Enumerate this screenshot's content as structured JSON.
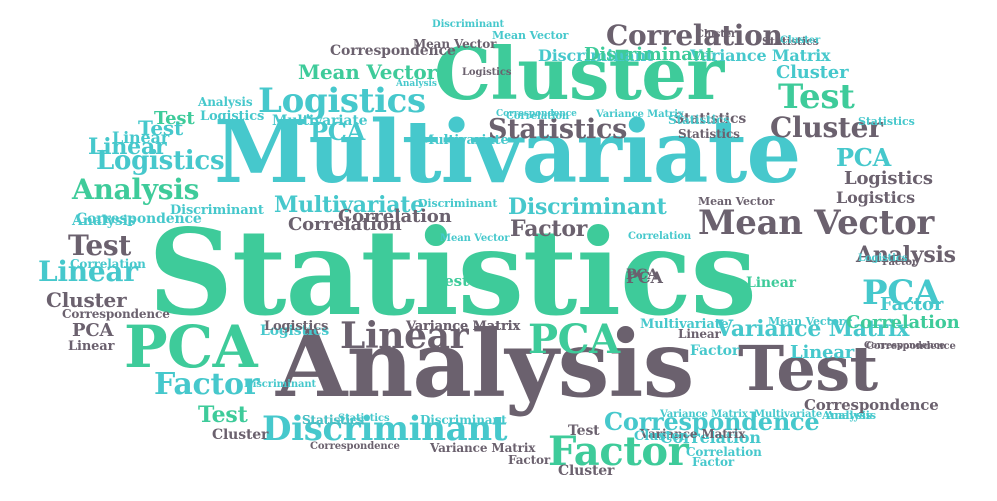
{
  "colors": {
    "teal": "#46c8cc",
    "green": "#3ecb9a",
    "gray": "#6b616e"
  },
  "words": [
    {
      "text": "Statistics",
      "color": "green"
    },
    {
      "text": "Multivariate",
      "color": "teal"
    },
    {
      "text": "Analysis",
      "color": "gray"
    },
    {
      "text": "Cluster",
      "color": "green"
    },
    {
      "text": "Test",
      "color": "gray"
    },
    {
      "text": "PCA",
      "color": "green"
    },
    {
      "text": "Mean Vector",
      "color": "gray"
    },
    {
      "text": "Discriminant",
      "color": "teal"
    },
    {
      "text": "Factor",
      "color": "green"
    },
    {
      "text": "Linear",
      "color": "gray"
    },
    {
      "text": "Logistics",
      "color": "teal"
    },
    {
      "text": "Correlation",
      "color": "gray"
    },
    {
      "text": "Statistics",
      "color": "gray"
    },
    {
      "text": "Cluster",
      "color": "gray"
    },
    {
      "text": "Test",
      "color": "green"
    },
    {
      "text": "PCA",
      "color": "green"
    },
    {
      "text": "PCA",
      "color": "teal"
    },
    {
      "text": "Correspondence",
      "color": "teal"
    },
    {
      "text": "Variance Matrix",
      "color": "teal"
    },
    {
      "text": "Factor",
      "color": "teal"
    },
    {
      "text": "Test",
      "color": "gray"
    },
    {
      "text": "Linear",
      "color": "teal"
    },
    {
      "text": "Analysis",
      "color": "green"
    },
    {
      "text": "Logistics",
      "color": "teal"
    },
    {
      "text": "Mean Vector",
      "color": "green"
    },
    {
      "text": "Analysis",
      "color": "gray"
    },
    {
      "text": "Linear",
      "color": "teal"
    },
    {
      "text": "Test",
      "color": "teal"
    },
    {
      "text": "Multivariate",
      "color": "teal"
    },
    {
      "text": "Discriminant",
      "color": "teal"
    },
    {
      "text": "Correlation",
      "color": "gray"
    },
    {
      "text": "Factor",
      "color": "gray"
    },
    {
      "text": "Linear",
      "color": "teal"
    },
    {
      "text": "PCA",
      "color": "teal"
    },
    {
      "text": "Logistics",
      "color": "gray"
    },
    {
      "text": "Cluster",
      "color": "gray"
    },
    {
      "text": "Test",
      "color": "green"
    },
    {
      "text": "Cluster",
      "color": "teal"
    },
    {
      "text": "Correspondence",
      "color": "gray"
    },
    {
      "text": "Discriminant",
      "color": "teal"
    },
    {
      "text": "Variance Matrix",
      "color": "teal"
    },
    {
      "text": "Correlation",
      "color": "teal"
    },
    {
      "text": "Statistics",
      "color": "gray"
    },
    {
      "text": "Statistics",
      "color": "gray"
    },
    {
      "text": "Statistics",
      "color": "gray"
    },
    {
      "text": "Logistics",
      "color": "gray"
    },
    {
      "text": "Multivariate",
      "color": "teal"
    },
    {
      "text": "PCA",
      "color": "teal"
    },
    {
      "text": "Variance Matrix",
      "color": "gray"
    },
    {
      "text": "Correlation",
      "color": "green"
    },
    {
      "text": "Correspondence",
      "color": "gray"
    },
    {
      "text": "Mean Vector",
      "color": "gray"
    },
    {
      "text": "Mean Vector",
      "color": "teal"
    },
    {
      "text": "Discriminant",
      "color": "teal"
    },
    {
      "text": "Statistics",
      "color": "teal"
    },
    {
      "text": "Logistics",
      "color": "gray"
    },
    {
      "text": "Analysis",
      "color": "teal"
    },
    {
      "text": "Analysis",
      "color": "teal"
    },
    {
      "text": "Logistics",
      "color": "teal"
    },
    {
      "text": "Correspondence",
      "color": "teal"
    },
    {
      "text": "Variance Matrix",
      "color": "gray"
    },
    {
      "text": "Statistics",
      "color": "gray"
    },
    {
      "text": "Cluster",
      "color": "gray"
    },
    {
      "text": "Statistics",
      "color": "teal"
    },
    {
      "text": "Multivariate",
      "color": "teal"
    },
    {
      "text": "Correlation",
      "color": "gray"
    },
    {
      "text": "Analysis",
      "color": "teal"
    },
    {
      "text": "Discriminant",
      "color": "teal"
    },
    {
      "text": "Logistics",
      "color": "teal"
    },
    {
      "text": "Correlation",
      "color": "teal"
    },
    {
      "text": "Mean Vector",
      "color": "teal"
    },
    {
      "text": "Variance Matrix",
      "color": "teal"
    },
    {
      "text": "Test",
      "color": "green"
    },
    {
      "text": "PCA",
      "color": "gray"
    },
    {
      "text": "Linear",
      "color": "green"
    },
    {
      "text": "Correlation",
      "color": "teal"
    },
    {
      "text": "Correspondence",
      "color": "gray"
    },
    {
      "text": "PCA",
      "color": "gray"
    },
    {
      "text": "Linear",
      "color": "gray"
    },
    {
      "text": "Logistics",
      "color": "gray"
    },
    {
      "text": "Variance Matrix",
      "color": "gray"
    },
    {
      "text": "Multivariate",
      "color": "teal"
    },
    {
      "text": "Linear",
      "color": "gray"
    },
    {
      "text": "Mean Vector",
      "color": "teal"
    },
    {
      "text": "Statistics",
      "color": "teal"
    },
    {
      "text": "Correspondence",
      "color": "gray"
    },
    {
      "text": "Factor",
      "color": "teal"
    },
    {
      "text": "Discriminant",
      "color": "teal"
    },
    {
      "text": "Statistics",
      "color": "teal"
    },
    {
      "text": "Cluster",
      "color": "teal"
    },
    {
      "text": "Discriminant",
      "color": "teal"
    },
    {
      "text": "Correspondence",
      "color": "gray"
    },
    {
      "text": "Variance Matrix",
      "color": "gray"
    },
    {
      "text": "Factor",
      "color": "gray"
    },
    {
      "text": "Test",
      "color": "gray"
    },
    {
      "text": "Cluster",
      "color": "gray"
    },
    {
      "text": "Variance Matrix",
      "color": "teal"
    },
    {
      "text": "Multivariate",
      "color": "teal"
    },
    {
      "text": "Analysis",
      "color": "teal"
    },
    {
      "text": "Cluster",
      "color": "teal"
    },
    {
      "text": "Correlation",
      "color": "teal"
    },
    {
      "text": "Factor",
      "color": "teal"
    },
    {
      "text": "Correlation",
      "color": "teal"
    },
    {
      "text": "Cluster",
      "color": "gray"
    },
    {
      "text": "Factor",
      "color": "gray"
    },
    {
      "text": "Factor",
      "color": "teal"
    },
    {
      "text": "Discriminant",
      "color": "teal"
    },
    {
      "text": "Linear",
      "color": "teal"
    },
    {
      "text": "Correspondence",
      "color": "teal"
    },
    {
      "text": "Logistics",
      "color": "teal"
    },
    {
      "text": "Test",
      "color": "green"
    },
    {
      "text": "PCA",
      "color": "gray"
    },
    {
      "text": "Correspondence",
      "color": "gray"
    },
    {
      "text": "Analysis",
      "color": "teal"
    },
    {
      "text": "Mean Vector",
      "color": "gray"
    },
    {
      "text": "Discriminant",
      "color": "green"
    }
  ]
}
